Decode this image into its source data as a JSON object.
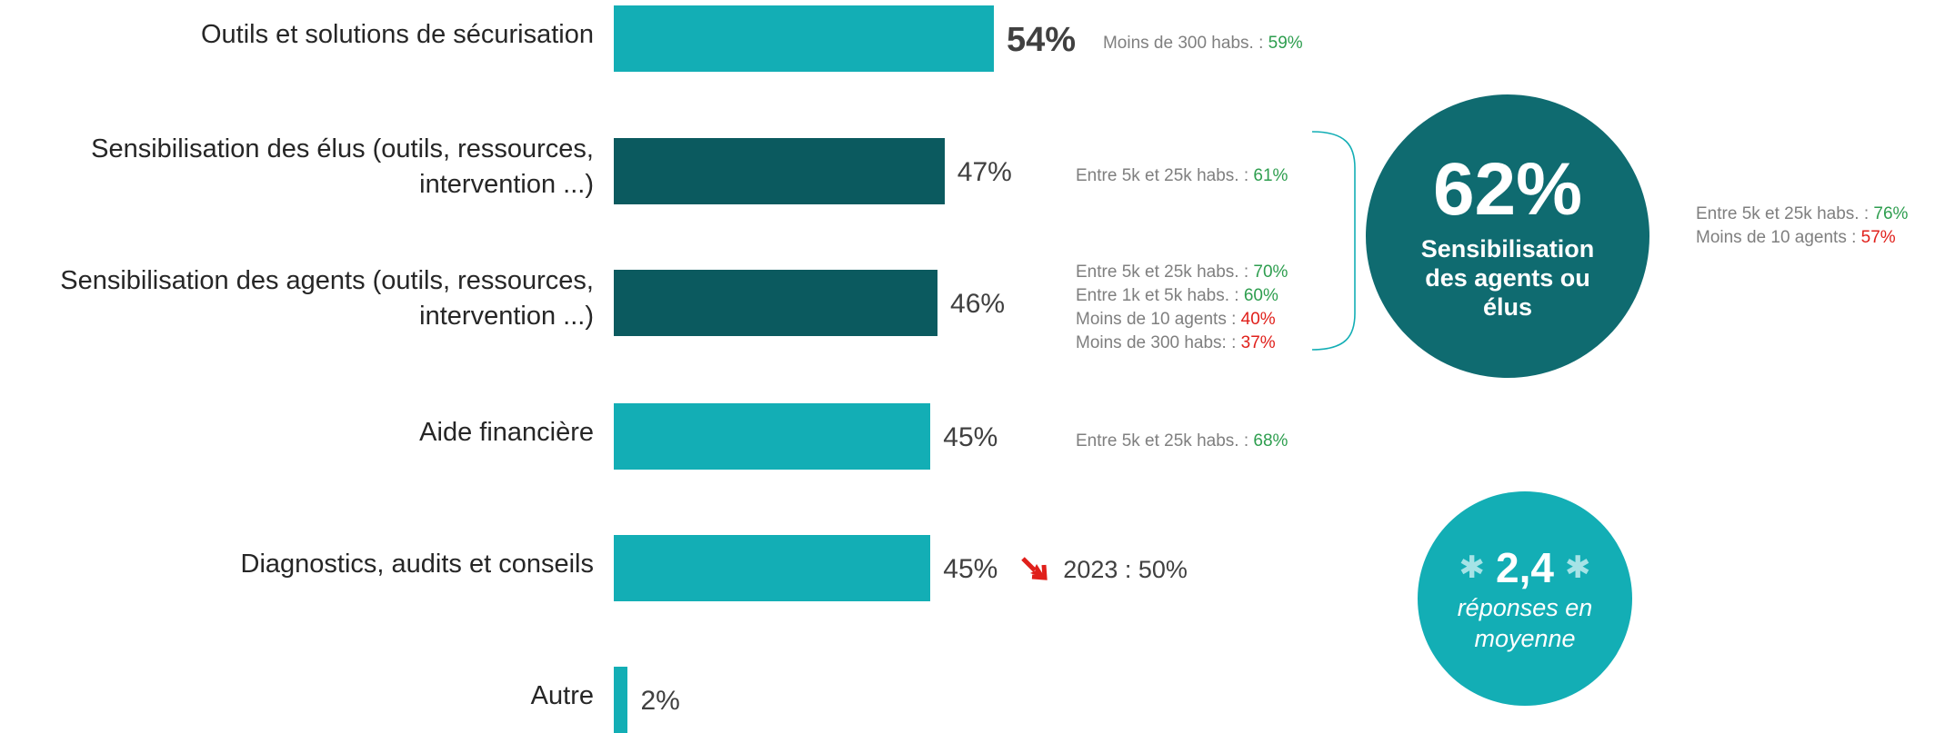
{
  "chart_data": {
    "type": "bar",
    "orientation": "horizontal",
    "categories": [
      "Outils et solutions de sécurisation",
      "Sensibilisation des élus (outils, ressources, intervention ...)",
      "Sensibilisation des agents (outils, ressources, intervention ...)",
      "Aide financière",
      "Diagnostics, audits et conseils",
      "Autre"
    ],
    "values": [
      54,
      47,
      46,
      45,
      45,
      2
    ],
    "value_labels": [
      "54%",
      "47%",
      "46%",
      "45%",
      "45%",
      "2%"
    ],
    "bold_labels": [
      true,
      false,
      false,
      false,
      false,
      false
    ],
    "colors": [
      "#13aeb5",
      "#0b5a5f",
      "#0b5a5f",
      "#13aeb5",
      "#13aeb5",
      "#13aeb5"
    ],
    "notes": [
      [
        {
          "label": "Moins de 300 habs. : ",
          "value": "59%",
          "color": "#2e9e4f"
        }
      ],
      [
        {
          "label": "Entre 5k et 25k habs. : ",
          "value": "61%",
          "color": "#2e9e4f"
        }
      ],
      [
        {
          "label": "Entre 5k et 25k habs. : ",
          "value": "70%",
          "color": "#2e9e4f"
        },
        {
          "label": "Entre 1k et 5k habs. : ",
          "value": "60%",
          "color": "#2e9e4f"
        },
        {
          "label": "Moins de 10 agents : ",
          "value": "40%",
          "color": "#e0201b"
        },
        {
          "label": "Moins de 300 habs: : ",
          "value": "37%",
          "color": "#e0201b"
        }
      ],
      [
        {
          "label": "Entre 5k et 25k habs. : ",
          "value": "68%",
          "color": "#2e9e4f"
        }
      ],
      [],
      []
    ],
    "trends": [
      null,
      null,
      null,
      null,
      "2023 : 50%",
      null
    ],
    "highlight": {
      "value_label": "62%",
      "text": "Sensibilisation des agents ou élus",
      "color": "#0f6b70",
      "notes": [
        {
          "label": "Entre 5k et 25k habs. : ",
          "value": "76%",
          "color": "#2e9e4f"
        },
        {
          "label": "Moins de 10 agents : ",
          "value": "57%",
          "color": "#e0201b"
        }
      ]
    },
    "average": {
      "value_label": "2,4",
      "text": "réponses en moyenne",
      "color": "#13aeb5"
    }
  }
}
